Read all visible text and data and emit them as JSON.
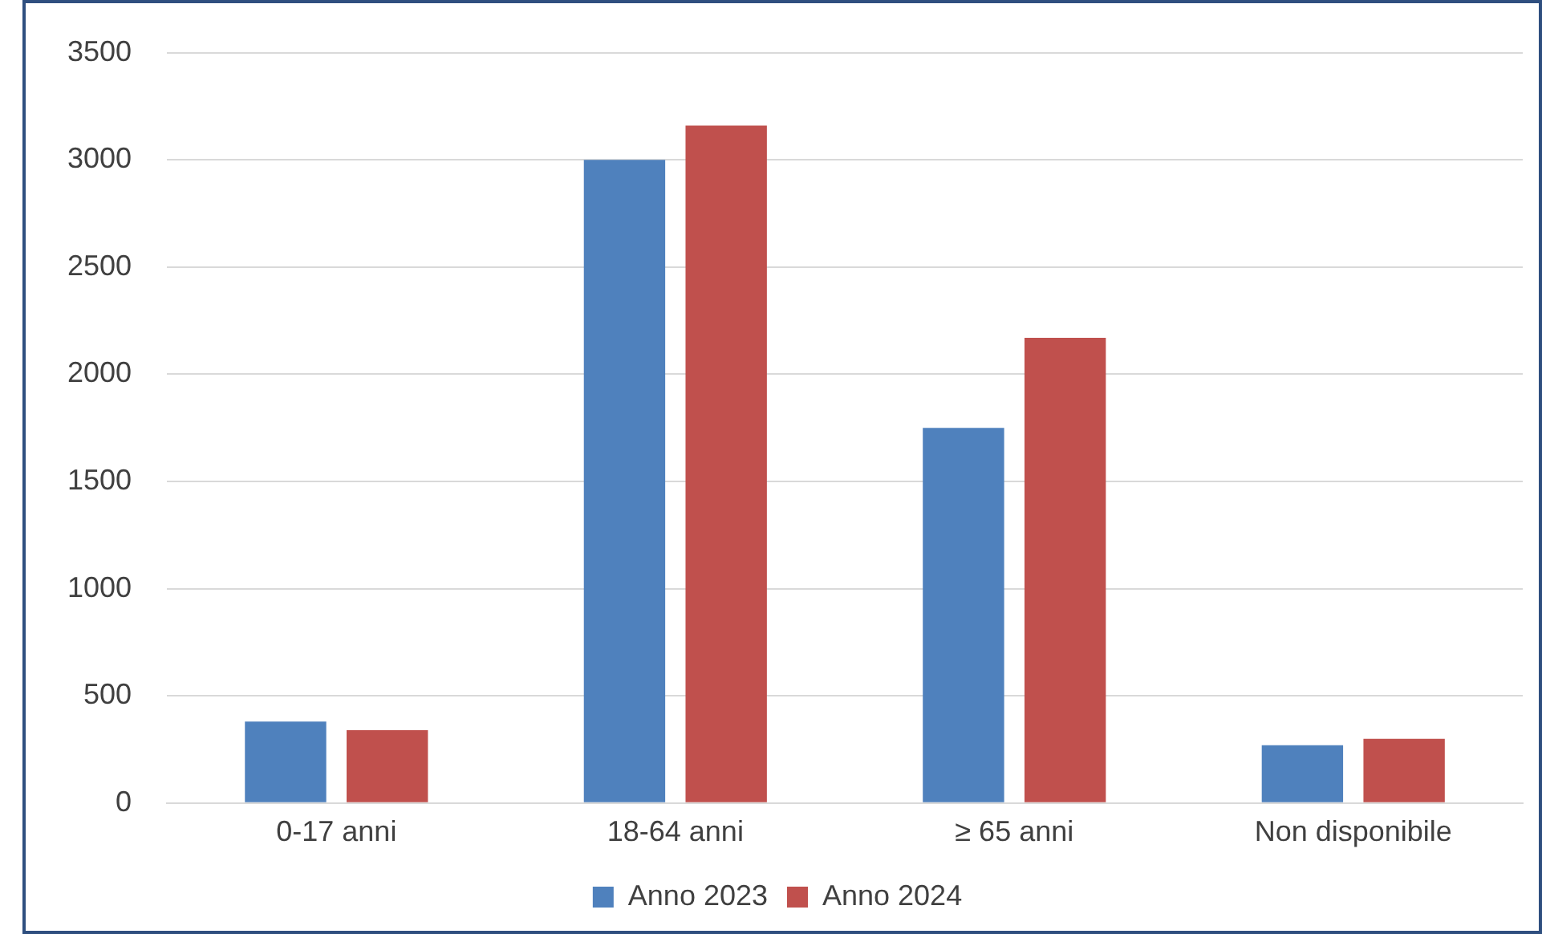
{
  "chart_data": {
    "type": "bar",
    "categories": [
      "0-17 anni",
      "18-64 anni",
      "≥ 65 anni",
      "Non disponibile"
    ],
    "series": [
      {
        "name": "Anno 2023",
        "color": "#4f81bd",
        "values": [
          380,
          3000,
          1750,
          270
        ]
      },
      {
        "name": "Anno 2024",
        "color": "#c0504d",
        "values": [
          340,
          3160,
          2170,
          300
        ]
      }
    ],
    "ylim": [
      0,
      3500
    ],
    "yticks": [
      0,
      500,
      1000,
      1500,
      2000,
      2500,
      3000,
      3500
    ],
    "grid": "y",
    "legend": "bottom"
  }
}
